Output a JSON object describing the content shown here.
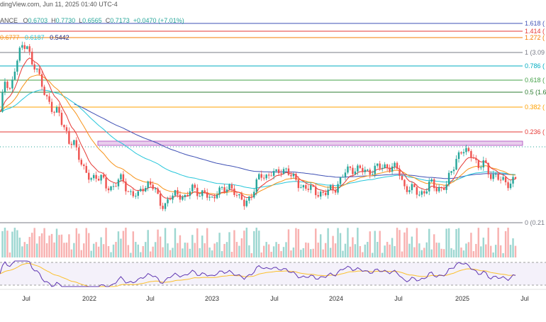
{
  "header": {
    "source": "dingView.com, Jun 11, 2025 01:40 UTC-4",
    "symbol_partial": "ANCE",
    "o_label": "O",
    "o_value": "0.6703",
    "h_label": "H",
    "h_value": "0.7730",
    "l_label": "L",
    "l_value": "0.6565",
    "c_label": "C",
    "c_value": "0.7173",
    "change": "+0.0470 (+7.01%)"
  },
  "ma_row": {
    "v1": "0.6777",
    "v2": "0.6187",
    "v3": "0.5442",
    "c1": "#f7931a",
    "c2": "#26c6da",
    "c3": "#1a237e"
  },
  "fib_levels": [
    {
      "ratio": 1.618,
      "label": "1.618 (",
      "color": "#3f51b5"
    },
    {
      "ratio": 1.414,
      "label": "1.414 (",
      "color": "#e53935"
    },
    {
      "ratio": 1.272,
      "label": "1.272 (",
      "color": "#f57c00"
    },
    {
      "ratio": 1.0,
      "label": "1 (3.09",
      "color": "#787b86"
    },
    {
      "ratio": 0.786,
      "label": "0.786 (",
      "color": "#00acc1"
    },
    {
      "ratio": 0.618,
      "label": "0.618 (",
      "color": "#43a047"
    },
    {
      "ratio": 0.5,
      "label": "0.5 (1.6",
      "color": "#2e7d32"
    },
    {
      "ratio": 0.382,
      "label": "0.382 (",
      "color": "#ffa000"
    },
    {
      "ratio": 0.236,
      "label": "0.236 (",
      "color": "#e53935"
    },
    {
      "ratio": 0.0,
      "label": "0 (0.21",
      "color": "#787b86"
    }
  ],
  "x_axis": [
    "Jul",
    "2022",
    "Jul",
    "2023",
    "Jul",
    "2024",
    "Jul",
    "2025",
    "Jul"
  ],
  "colors": {
    "up": "#26a69a",
    "down": "#ef5350",
    "ema_fast": "#e53935",
    "ema_mid": "#f7931a",
    "ema_slow": "#26c6da",
    "ma_long": "#3f51b5",
    "zone": "#ce93d8",
    "rsi": "#5e35b1",
    "rsi_ma": "#fbc02d"
  },
  "chart_data": {
    "type": "candlestick",
    "interval": "weekly",
    "x_ticks": [
      "Jul",
      "2022",
      "Jul",
      "2023",
      "Jul",
      "2024",
      "Jul",
      "2025",
      "Jul"
    ],
    "close_path": [
      [
        0.0,
        1.8
      ],
      [
        0.5,
        2.4
      ],
      [
        1.0,
        2.2
      ],
      [
        1.5,
        2.6
      ],
      [
        2.0,
        2.9
      ],
      [
        2.5,
        3.0
      ],
      [
        3.0,
        2.6
      ],
      [
        3.5,
        2.5
      ],
      [
        4.0,
        2.3
      ],
      [
        4.5,
        2.0
      ],
      [
        5.0,
        1.8
      ],
      [
        5.5,
        1.9
      ],
      [
        6.0,
        1.6
      ],
      [
        6.5,
        1.3
      ],
      [
        7.0,
        1.35
      ],
      [
        7.5,
        1.1
      ],
      [
        8.0,
        0.8
      ],
      [
        8.5,
        0.75
      ],
      [
        9.0,
        0.8
      ],
      [
        9.5,
        0.75
      ],
      [
        10.0,
        0.6
      ],
      [
        10.5,
        0.6
      ],
      [
        11.0,
        0.7
      ],
      [
        11.5,
        0.72
      ],
      [
        12.0,
        0.55
      ],
      [
        12.5,
        0.5
      ],
      [
        13.0,
        0.45
      ],
      [
        13.5,
        0.62
      ],
      [
        14.0,
        0.68
      ],
      [
        14.5,
        0.58
      ],
      [
        15.0,
        0.35
      ],
      [
        15.5,
        0.32
      ],
      [
        16.0,
        0.42
      ],
      [
        16.5,
        0.48
      ],
      [
        17.0,
        0.5
      ],
      [
        17.5,
        0.4
      ],
      [
        18.0,
        0.6
      ],
      [
        18.5,
        0.55
      ],
      [
        19.0,
        0.5
      ],
      [
        19.5,
        0.45
      ],
      [
        20.0,
        0.4
      ],
      [
        20.5,
        0.6
      ],
      [
        21.0,
        0.5
      ],
      [
        21.5,
        0.62
      ],
      [
        22.0,
        0.58
      ],
      [
        22.5,
        0.4
      ],
      [
        23.0,
        0.33
      ],
      [
        23.5,
        0.45
      ],
      [
        24.0,
        0.6
      ],
      [
        24.5,
        0.8
      ],
      [
        25.0,
        0.78
      ],
      [
        25.5,
        0.85
      ],
      [
        26.0,
        0.8
      ],
      [
        26.5,
        0.9
      ],
      [
        27.0,
        0.9
      ],
      [
        27.5,
        0.74
      ],
      [
        28.0,
        0.68
      ],
      [
        28.5,
        0.61
      ],
      [
        29.0,
        0.58
      ],
      [
        29.5,
        0.55
      ],
      [
        30.0,
        0.52
      ],
      [
        30.5,
        0.48
      ],
      [
        31.0,
        0.55
      ],
      [
        31.5,
        0.6
      ],
      [
        32.0,
        0.7
      ],
      [
        32.5,
        0.85
      ],
      [
        33.0,
        0.92
      ],
      [
        33.5,
        0.9
      ],
      [
        34.0,
        0.88
      ],
      [
        34.5,
        0.85
      ],
      [
        35.0,
        0.89
      ],
      [
        35.5,
        0.92
      ],
      [
        36.0,
        0.93
      ],
      [
        36.5,
        0.96
      ],
      [
        37.0,
        0.92
      ],
      [
        37.5,
        0.88
      ],
      [
        38.0,
        0.62
      ],
      [
        38.5,
        0.58
      ],
      [
        39.0,
        0.55
      ],
      [
        39.5,
        0.5
      ],
      [
        40.0,
        0.55
      ],
      [
        40.5,
        0.66
      ],
      [
        41.0,
        0.6
      ],
      [
        41.5,
        0.59
      ],
      [
        42.0,
        0.62
      ],
      [
        42.5,
        0.88
      ],
      [
        43.0,
        1.12
      ],
      [
        43.5,
        1.2
      ],
      [
        44.0,
        1.15
      ],
      [
        44.5,
        1.17
      ],
      [
        45.0,
        0.9
      ],
      [
        45.5,
        1.0
      ],
      [
        46.0,
        0.85
      ],
      [
        46.5,
        0.79
      ],
      [
        47.0,
        0.72
      ],
      [
        47.5,
        0.7
      ],
      [
        48.0,
        0.68
      ],
      [
        48.5,
        0.72
      ]
    ]
  }
}
